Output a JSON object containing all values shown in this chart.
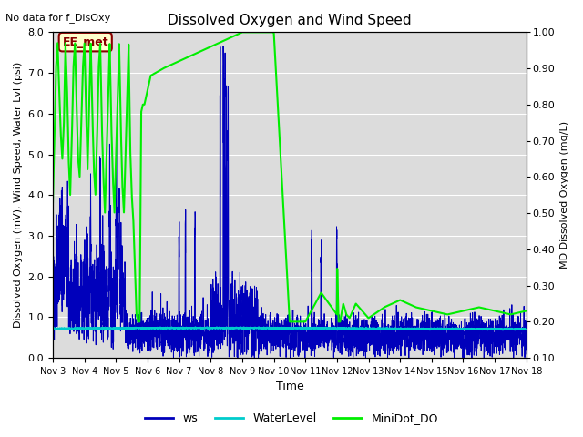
{
  "title": "Dissolved Oxygen and Wind Speed",
  "top_left_text": "No data for f_DisOxy",
  "annotation_box": "EE_met",
  "xlabel": "Time",
  "ylabel_left": "Dissolved Oxygen (mV), Wind Speed, Water Lvl (psi)",
  "ylabel_right": "MD Dissolved Oxygen (mg/L)",
  "ylim_left": [
    0.0,
    8.0
  ],
  "ylim_right": [
    0.1,
    1.0
  ],
  "yticks_left": [
    0.0,
    1.0,
    2.0,
    3.0,
    4.0,
    5.0,
    6.0,
    7.0,
    8.0
  ],
  "yticks_right": [
    0.1,
    0.2,
    0.3,
    0.4,
    0.5,
    0.6,
    0.7,
    0.8,
    0.9,
    1.0
  ],
  "xtick_labels": [
    "Nov 3",
    "Nov 4",
    "Nov 5",
    "Nov 6",
    "Nov 7",
    "Nov 8",
    "Nov 9",
    "Nov 10",
    "Nov 11",
    "Nov 12",
    "Nov 13",
    "Nov 14",
    "Nov 15",
    "Nov 16",
    "Nov 17",
    "Nov 18"
  ],
  "background_color": "#dcdcdc",
  "ws_color": "#0000bb",
  "water_level_color": "#00cccc",
  "minidot_color": "#00ee00",
  "legend_labels": [
    "ws",
    "WaterLevel",
    "MiniDot_DO"
  ],
  "ws_linewidth": 0.7,
  "water_level_linewidth": 1.2,
  "minidot_linewidth": 1.5,
  "annotation_facecolor": "#ffffcc",
  "annotation_edgecolor": "#880000",
  "annotation_textcolor": "#880000"
}
